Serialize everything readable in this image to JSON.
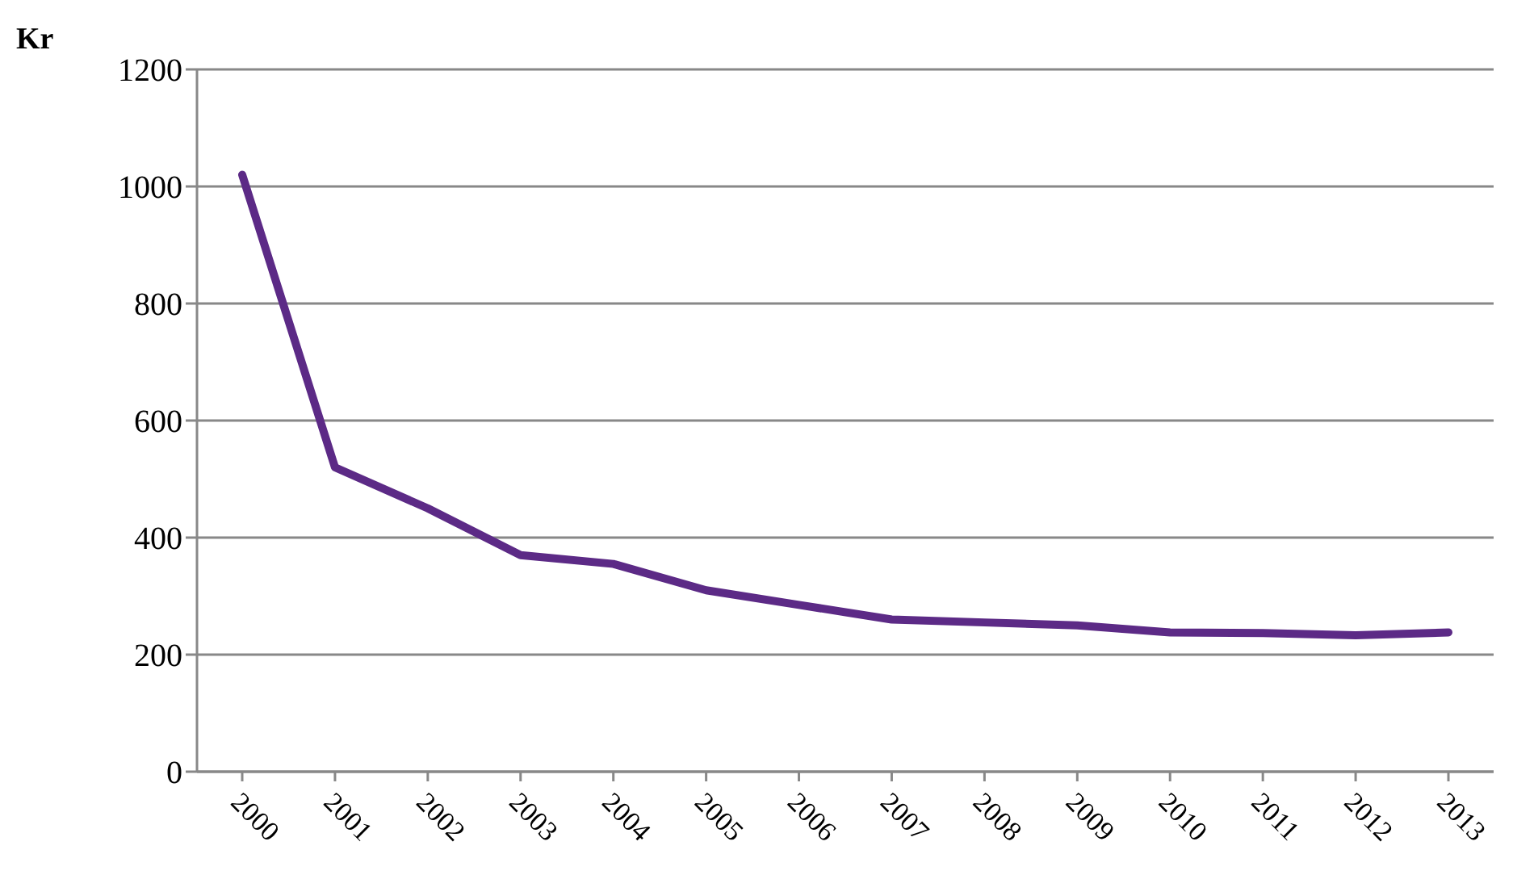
{
  "chart_data": {
    "type": "line",
    "ylabel": "Kr",
    "categories": [
      "2000",
      "2001",
      "2002",
      "2003",
      "2004",
      "2005",
      "2006",
      "2007",
      "2008",
      "2009",
      "2010",
      "2011",
      "2012",
      "2013"
    ],
    "series": [
      {
        "color": "#5c2a86",
        "values": [
          1020,
          520,
          450,
          370,
          355,
          310,
          285,
          260,
          255,
          250,
          238,
          237,
          233,
          238
        ]
      }
    ],
    "ylim": [
      0,
      1200
    ],
    "yticks": [
      0,
      200,
      400,
      600,
      800,
      1000,
      1200
    ],
    "grid": "y",
    "legend": false,
    "marker": "none",
    "line_style": "solid"
  }
}
